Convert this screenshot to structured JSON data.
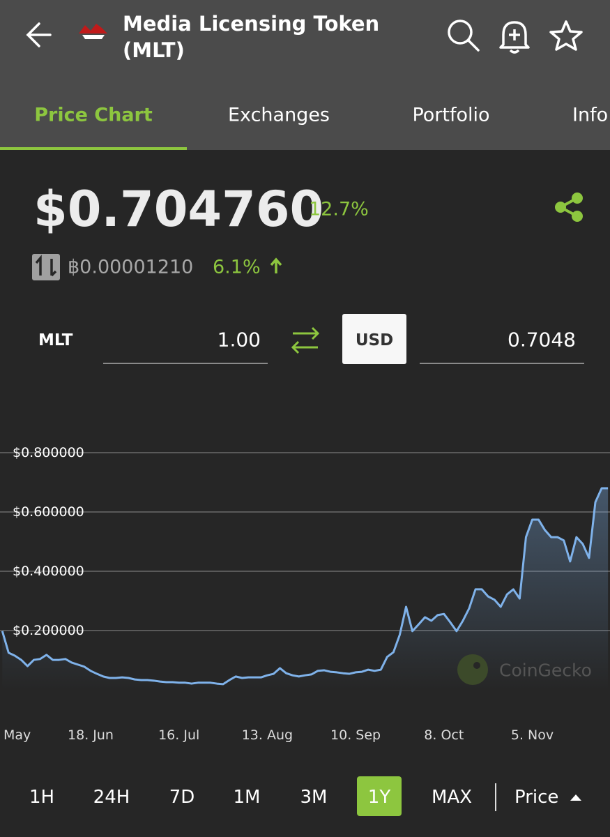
{
  "header": {
    "title": "Media Licensing Token",
    "symbol": "(MLT)"
  },
  "tabs": [
    "Price Chart",
    "Exchanges",
    "Portfolio",
    "Info"
  ],
  "price": {
    "usd": "$0.704760",
    "usd_change": "12.7%",
    "btc": "฿0.00001210",
    "btc_change": "6.1%"
  },
  "converter": {
    "from_label": "MLT",
    "from_value": "1.00",
    "to_label": "USD",
    "to_value": "0.7048"
  },
  "watermark": "CoinGecko",
  "chart_data": {
    "type": "line",
    "categories": [
      "May",
      null,
      null,
      null,
      null,
      null,
      null,
      null,
      null,
      null,
      null,
      null,
      null,
      null,
      "18. Jun",
      null,
      null,
      null,
      null,
      null,
      null,
      null,
      null,
      null,
      null,
      null,
      null,
      null,
      "16. Jul",
      null,
      null,
      null,
      null,
      null,
      null,
      null,
      null,
      null,
      null,
      null,
      null,
      null,
      "13. Aug",
      null,
      null,
      null,
      null,
      null,
      null,
      null,
      null,
      null,
      null,
      null,
      null,
      null,
      "10. Sep",
      null,
      null,
      null,
      null,
      null,
      null,
      null,
      null,
      null,
      null,
      null,
      null,
      null,
      "8. Oct",
      null,
      null,
      null,
      null,
      null,
      null,
      null,
      null,
      null,
      null,
      null,
      null,
      null,
      "5. Nov",
      null,
      null,
      null,
      null,
      null,
      null,
      null,
      null,
      null,
      null,
      null,
      null
    ],
    "series": [
      {
        "name": "Price",
        "color": "#7fb2ea",
        "values": [
          0.198,
          0.125,
          0.115,
          0.101,
          0.08,
          0.101,
          0.104,
          0.118,
          0.101,
          0.101,
          0.104,
          0.092,
          0.085,
          0.078,
          0.064,
          0.054,
          0.045,
          0.04,
          0.04,
          0.042,
          0.04,
          0.035,
          0.033,
          0.033,
          0.031,
          0.028,
          0.026,
          0.026,
          0.024,
          0.024,
          0.021,
          0.024,
          0.024,
          0.024,
          0.021,
          0.019,
          0.033,
          0.045,
          0.04,
          0.042,
          0.042,
          0.042,
          0.049,
          0.054,
          0.073,
          0.056,
          0.049,
          0.045,
          0.049,
          0.052,
          0.064,
          0.066,
          0.061,
          0.059,
          0.056,
          0.054,
          0.059,
          0.061,
          0.068,
          0.064,
          0.068,
          0.111,
          0.127,
          0.186,
          0.28,
          0.198,
          0.221,
          0.245,
          0.233,
          0.252,
          0.256,
          0.228,
          0.198,
          0.233,
          0.275,
          0.339,
          0.339,
          0.315,
          0.304,
          0.28,
          0.322,
          0.339,
          0.308,
          0.515,
          0.574,
          0.574,
          0.539,
          0.515,
          0.515,
          0.504,
          0.433,
          0.515,
          0.492,
          0.445,
          0.633,
          0.68,
          0.68
        ]
      }
    ],
    "ylim": [
      0,
      0.9
    ],
    "yticks": [
      {
        "value": 0.2,
        "label": "$0.200000"
      },
      {
        "value": 0.4,
        "label": "$0.400000"
      },
      {
        "value": 0.6,
        "label": "$0.600000"
      },
      {
        "value": 0.8,
        "label": "$0.800000"
      }
    ],
    "grid": true
  },
  "ranges": [
    "1H",
    "24H",
    "7D",
    "1M",
    "3M",
    "1Y",
    "MAX"
  ],
  "selected_range": 5,
  "metric": "Price"
}
